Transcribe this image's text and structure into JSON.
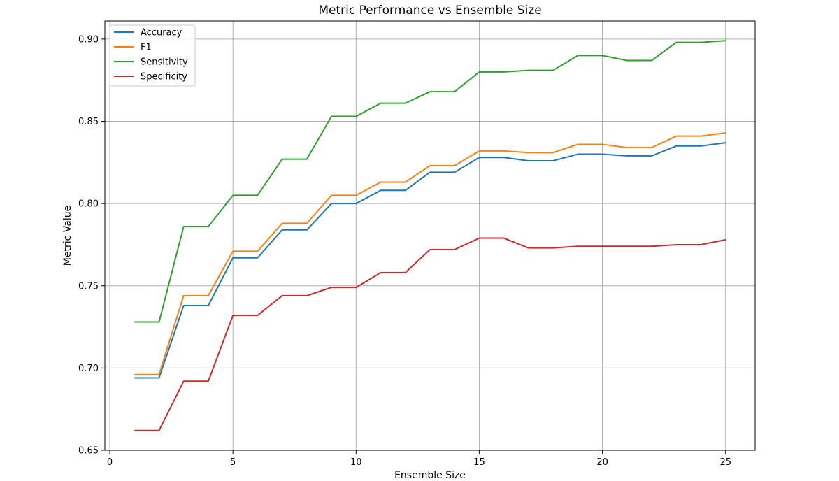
{
  "chart_data": {
    "type": "line",
    "title": "Metric Performance vs Ensemble Size",
    "xlabel": "Ensemble Size",
    "ylabel": "Metric Value",
    "xlim": [
      -0.2,
      26.2
    ],
    "ylim": [
      0.65,
      0.911
    ],
    "xticks": [
      0,
      5,
      10,
      15,
      20,
      25
    ],
    "yticks": [
      0.65,
      0.7,
      0.75,
      0.8,
      0.85,
      0.9
    ],
    "xtick_labels": [
      "0",
      "5",
      "10",
      "15",
      "20",
      "25"
    ],
    "ytick_labels": [
      "0.65",
      "0.70",
      "0.75",
      "0.80",
      "0.85",
      "0.90"
    ],
    "grid": true,
    "legend_position": "top-left",
    "x": [
      1,
      2,
      3,
      4,
      5,
      6,
      7,
      8,
      9,
      10,
      11,
      12,
      13,
      14,
      15,
      16,
      17,
      18,
      19,
      20,
      21,
      22,
      23,
      24,
      25
    ],
    "series": [
      {
        "name": "Accuracy",
        "color": "#1f77b4",
        "values": [
          0.694,
          0.694,
          0.738,
          0.738,
          0.767,
          0.767,
          0.784,
          0.784,
          0.8,
          0.8,
          0.808,
          0.808,
          0.819,
          0.819,
          0.828,
          0.828,
          0.826,
          0.826,
          0.83,
          0.83,
          0.829,
          0.829,
          0.835,
          0.835,
          0.837
        ]
      },
      {
        "name": "F1",
        "color": "#ff7f0e",
        "values": [
          0.696,
          0.696,
          0.744,
          0.744,
          0.771,
          0.771,
          0.788,
          0.788,
          0.805,
          0.805,
          0.813,
          0.813,
          0.823,
          0.823,
          0.832,
          0.832,
          0.831,
          0.831,
          0.836,
          0.836,
          0.834,
          0.834,
          0.841,
          0.841,
          0.843
        ]
      },
      {
        "name": "Sensitivity",
        "color": "#2ca02c",
        "values": [
          0.728,
          0.728,
          0.786,
          0.786,
          0.805,
          0.805,
          0.827,
          0.827,
          0.853,
          0.853,
          0.861,
          0.861,
          0.868,
          0.868,
          0.88,
          0.88,
          0.881,
          0.881,
          0.89,
          0.89,
          0.887,
          0.887,
          0.898,
          0.898,
          0.899
        ]
      },
      {
        "name": "Specificity",
        "color": "#d62728",
        "values": [
          0.662,
          0.662,
          0.692,
          0.692,
          0.732,
          0.732,
          0.744,
          0.744,
          0.749,
          0.749,
          0.758,
          0.758,
          0.772,
          0.772,
          0.779,
          0.779,
          0.773,
          0.773,
          0.774,
          0.774,
          0.774,
          0.774,
          0.775,
          0.775,
          0.778
        ]
      }
    ]
  }
}
